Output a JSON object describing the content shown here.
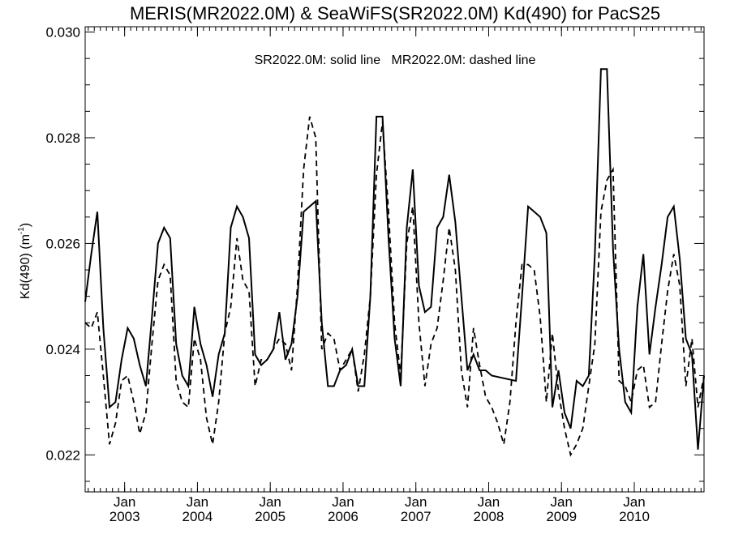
{
  "chart_data": {
    "type": "line",
    "title": "MERIS(MR2022.0M) & SeaWiFS(SR2022.0M)  Kd(490) for PacS25",
    "annotation": "SR2022.0M: solid line   MR2022.0M: dashed line",
    "ylabel": "Kd(490) (m",
    "ylabel_sup": "-1",
    "ylabel_close": ")",
    "ylim": [
      0.0213,
      0.0301
    ],
    "xlim": [
      2002.458,
      2010.958
    ],
    "y_ticks": [
      {
        "value": 0.022,
        "label": "0.022"
      },
      {
        "value": 0.024,
        "label": "0.024"
      },
      {
        "value": 0.026,
        "label": "0.026"
      },
      {
        "value": 0.028,
        "label": "0.028"
      },
      {
        "value": 0.03,
        "label": "0.030"
      }
    ],
    "y_minor_ticks": [
      0.0215,
      0.0225,
      0.023,
      0.0235,
      0.0245,
      0.025,
      0.0255,
      0.0265,
      0.027,
      0.0275,
      0.0285,
      0.029,
      0.0295
    ],
    "x_ticks": [
      {
        "value": 2003.0,
        "month": "Jan",
        "year": "2003"
      },
      {
        "value": 2004.0,
        "month": "Jan",
        "year": "2004"
      },
      {
        "value": 2005.0,
        "month": "Jan",
        "year": "2005"
      },
      {
        "value": 2006.0,
        "month": "Jan",
        "year": "2006"
      },
      {
        "value": 2007.0,
        "month": "Jan",
        "year": "2007"
      },
      {
        "value": 2008.0,
        "month": "Jan",
        "year": "2008"
      },
      {
        "value": 2009.0,
        "month": "Jan",
        "year": "2009"
      },
      {
        "value": 2010.0,
        "month": "Jan",
        "year": "2010"
      }
    ],
    "grid": false,
    "series": [
      {
        "name": "SR2022.0M",
        "style": "solid",
        "x": [
          2002.458,
          2002.542,
          2002.625,
          2002.708,
          2002.792,
          2002.875,
          2002.958,
          2003.042,
          2003.125,
          2003.208,
          2003.292,
          2003.375,
          2003.458,
          2003.542,
          2003.625,
          2003.708,
          2003.792,
          2003.875,
          2003.958,
          2004.042,
          2004.125,
          2004.208,
          2004.292,
          2004.375,
          2004.458,
          2004.542,
          2004.625,
          2004.708,
          2004.792,
          2004.875,
          2004.958,
          2005.042,
          2005.125,
          2005.208,
          2005.292,
          2005.375,
          2005.458,
          2005.542,
          2005.625,
          2005.708,
          2005.792,
          2005.875,
          2005.958,
          2006.042,
          2006.125,
          2006.208,
          2006.292,
          2006.375,
          2006.458,
          2006.542,
          2006.625,
          2006.708,
          2006.792,
          2006.875,
          2006.958,
          2007.042,
          2007.125,
          2007.208,
          2007.292,
          2007.375,
          2007.458,
          2007.542,
          2007.625,
          2007.708,
          2007.792,
          2007.875,
          2007.958,
          2008.042,
          2008.375,
          2008.458,
          2008.542,
          2008.625,
          2008.708,
          2008.792,
          2008.875,
          2008.958,
          2009.042,
          2009.125,
          2009.208,
          2009.292,
          2009.375,
          2009.458,
          2009.542,
          2009.625,
          2009.708,
          2009.792,
          2009.875,
          2009.958,
          2010.042,
          2010.125,
          2010.208,
          2010.292,
          2010.375,
          2010.458,
          2010.542,
          2010.625,
          2010.708,
          2010.792,
          2010.875,
          2010.958
        ],
        "y": [
          0.0249,
          0.0258,
          0.0266,
          0.0244,
          0.0229,
          0.023,
          0.0238,
          0.0244,
          0.0242,
          0.0237,
          0.0233,
          0.0246,
          0.026,
          0.0263,
          0.0261,
          0.0241,
          0.0235,
          0.0233,
          0.0248,
          0.0241,
          0.0237,
          0.0231,
          0.0239,
          0.0243,
          0.0263,
          0.0267,
          0.0265,
          0.0261,
          0.0239,
          0.0237,
          0.0238,
          0.024,
          0.0247,
          0.0238,
          0.0241,
          0.025,
          0.0266,
          0.0267,
          0.0268,
          0.0245,
          0.0233,
          0.0233,
          0.0236,
          0.0237,
          0.024,
          0.0233,
          0.0233,
          0.025,
          0.0284,
          0.0284,
          0.0261,
          0.0242,
          0.0233,
          0.0263,
          0.0274,
          0.0252,
          0.0247,
          0.0248,
          0.0263,
          0.0265,
          0.0273,
          0.0264,
          0.025,
          0.0236,
          0.0239,
          0.0236,
          0.0236,
          0.0235,
          0.0234,
          0.025,
          0.0267,
          0.0266,
          0.0265,
          0.0262,
          0.0229,
          0.0236,
          0.0228,
          0.0225,
          0.0234,
          0.0233,
          0.0235,
          0.0258,
          0.0293,
          0.0293,
          0.0259,
          0.024,
          0.023,
          0.0228,
          0.0248,
          0.0258,
          0.0239,
          0.0248,
          0.0256,
          0.0265,
          0.0267,
          0.0257,
          0.0242,
          0.0239,
          0.0221,
          0.0235
        ]
      },
      {
        "name": "MR2022.0M",
        "style": "dashed",
        "x": [
          2002.458,
          2002.542,
          2002.625,
          2002.708,
          2002.792,
          2002.875,
          2002.958,
          2003.042,
          2003.125,
          2003.208,
          2003.292,
          2003.375,
          2003.458,
          2003.542,
          2003.625,
          2003.708,
          2003.792,
          2003.875,
          2003.958,
          2004.042,
          2004.125,
          2004.208,
          2004.292,
          2004.375,
          2004.458,
          2004.542,
          2004.625,
          2004.708,
          2004.792,
          2004.875,
          2004.958,
          2005.042,
          2005.125,
          2005.208,
          2005.292,
          2005.375,
          2005.458,
          2005.542,
          2005.625,
          2005.708,
          2005.792,
          2005.875,
          2005.958,
          2006.042,
          2006.125,
          2006.208,
          2006.292,
          2006.375,
          2006.458,
          2006.542,
          2006.625,
          2006.708,
          2006.792,
          2006.875,
          2006.958,
          2007.042,
          2007.125,
          2007.208,
          2007.292,
          2007.375,
          2007.458,
          2007.542,
          2007.625,
          2007.708,
          2007.792,
          2007.875,
          2007.958,
          2008.042,
          2008.125,
          2008.208,
          2008.292,
          2008.375,
          2008.458,
          2008.542,
          2008.625,
          2008.708,
          2008.792,
          2008.875,
          2008.958,
          2009.042,
          2009.125,
          2009.208,
          2009.292,
          2009.375,
          2009.458,
          2009.542,
          2009.625,
          2009.708,
          2009.792,
          2009.875,
          2009.958,
          2010.042,
          2010.125,
          2010.208,
          2010.292,
          2010.375,
          2010.458,
          2010.542,
          2010.625,
          2010.708,
          2010.792,
          2010.875,
          2010.958
        ],
        "y": [
          0.0245,
          0.0244,
          0.0247,
          0.0235,
          0.0222,
          0.0226,
          0.0234,
          0.0235,
          0.023,
          0.0224,
          0.0228,
          0.0241,
          0.0253,
          0.0256,
          0.0254,
          0.0234,
          0.023,
          0.0229,
          0.0242,
          0.0238,
          0.0227,
          0.0222,
          0.023,
          0.0243,
          0.0248,
          0.0261,
          0.0253,
          0.0251,
          0.0233,
          0.0238,
          0.0238,
          0.024,
          0.0242,
          0.0241,
          0.0236,
          0.0252,
          0.0274,
          0.0284,
          0.028,
          0.024,
          0.0243,
          0.0242,
          0.0236,
          0.0238,
          0.024,
          0.0232,
          0.0239,
          0.025,
          0.0273,
          0.0283,
          0.0266,
          0.0245,
          0.0235,
          0.026,
          0.0267,
          0.0245,
          0.0233,
          0.0241,
          0.0244,
          0.0253,
          0.0263,
          0.0255,
          0.0236,
          0.0229,
          0.0244,
          0.0237,
          0.0231,
          0.0229,
          0.0226,
          0.0222,
          0.023,
          0.0245,
          0.0256,
          0.0256,
          0.0255,
          0.0246,
          0.023,
          0.0243,
          0.0232,
          0.0225,
          0.022,
          0.0222,
          0.0225,
          0.0233,
          0.0241,
          0.0266,
          0.0272,
          0.0274,
          0.0234,
          0.0233,
          0.023,
          0.0236,
          0.0237,
          0.0229,
          0.023,
          0.0241,
          0.0251,
          0.0258,
          0.0252,
          0.0233,
          0.0242,
          0.0229,
          0.0235
        ]
      }
    ]
  }
}
